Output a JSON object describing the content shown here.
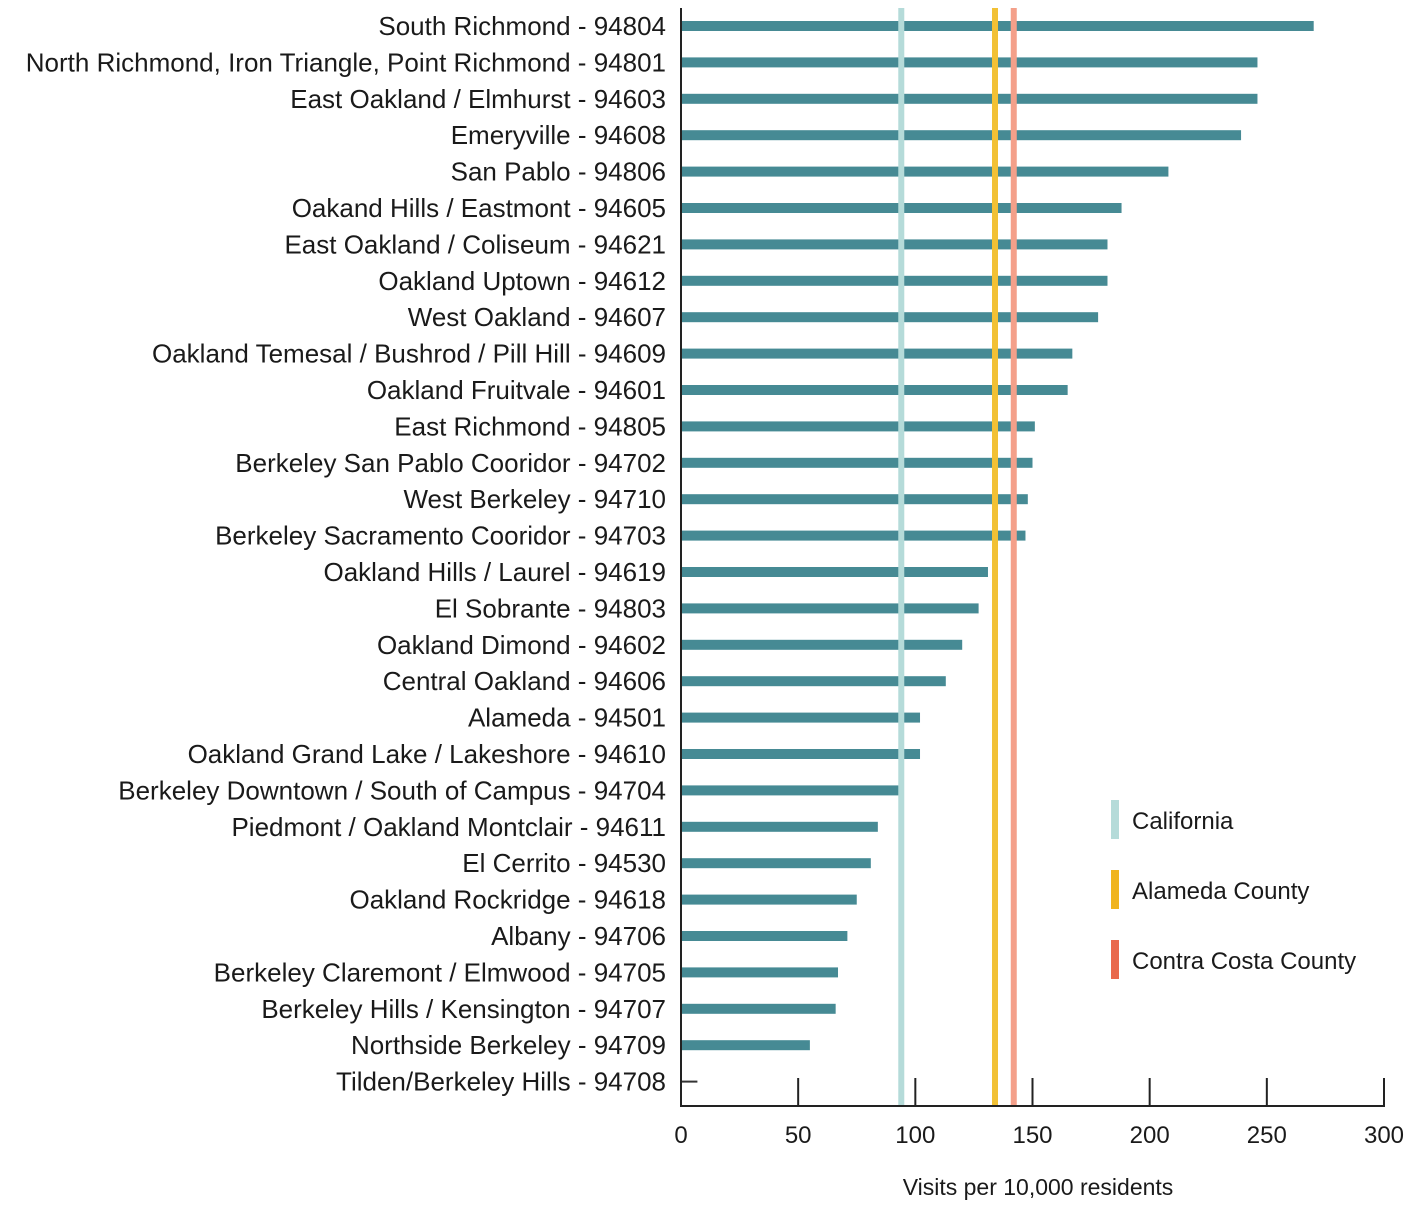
{
  "chart_data": {
    "type": "bar",
    "orientation": "horizontal",
    "title": "",
    "xlabel": "Visits per 10,000 residents",
    "ylabel": "",
    "xlim": [
      0,
      300
    ],
    "xticks": [
      0,
      50,
      100,
      150,
      200,
      250,
      300
    ],
    "grid": false,
    "legend_position": "right",
    "categories": [
      "South Richmond - 94804",
      "North Richmond, Iron Triangle, Point Richmond - 94801",
      "East Oakland / Elmhurst - 94603",
      "Emeryville - 94608",
      "San Pablo - 94806",
      "Oakand Hills / Eastmont - 94605",
      "East Oakland / Coliseum - 94621",
      "Oakland Uptown - 94612",
      "West Oakland - 94607",
      "Oakland Temesal / Bushrod / Pill Hill - 94609",
      "Oakland Fruitvale - 94601",
      "East Richmond - 94805",
      "Berkeley San Pablo Cooridor - 94702",
      "West Berkeley - 94710",
      "Berkeley Sacramento Cooridor - 94703",
      "Oakland Hills / Laurel - 94619",
      "El Sobrante - 94803",
      "Oakland Dimond - 94602",
      "Central Oakland - 94606",
      "Alameda - 94501",
      "Oakland Grand Lake / Lakeshore - 94610",
      "Berkeley Downtown / South of Campus - 94704",
      "Piedmont / Oakland Montclair - 94611",
      "El Cerrito - 94530",
      "Oakland Rockridge - 94618",
      "Albany - 94706",
      "Berkeley Claremont / Elmwood - 94705",
      "Berkeley Hills / Kensington - 94707",
      "Northside Berkeley - 94709",
      "Tilden/Berkeley Hills - 94708"
    ],
    "values": [
      270,
      246,
      246,
      239,
      208,
      188,
      182,
      182,
      178,
      167,
      165,
      151,
      150,
      148,
      147,
      131,
      127,
      120,
      113,
      102,
      102,
      95,
      84,
      81,
      75,
      71,
      67,
      66,
      55,
      7
    ],
    "bar_color": "#468a94",
    "reference_lines": [
      {
        "name": "California",
        "value": 94,
        "color": "#b5dbd9"
      },
      {
        "name": "Alameda County",
        "value": 134,
        "color": "#f2c135"
      },
      {
        "name": "Contra Costa County",
        "value": 142,
        "color": "#f4a08a"
      }
    ],
    "legend": [
      {
        "label": "California",
        "color": "#b5dbd9"
      },
      {
        "label": "Alameda County",
        "color": "#f0b41e"
      },
      {
        "label": "Contra Costa County",
        "color": "#e9694c"
      }
    ]
  }
}
